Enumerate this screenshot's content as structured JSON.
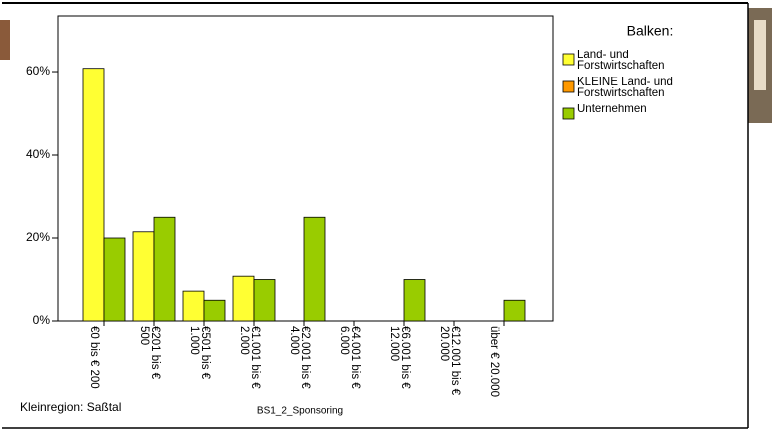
{
  "chart_data": {
    "type": "bar",
    "categories": [
      "€0 bis € 200",
      "€201 bis € 500",
      "€501 bis € 1.000",
      "€1.001 bis € 2.000",
      "€2.001 bis € 4.000",
      "€4.001 bis € 6.000",
      "€6.001 bis € 12.000",
      "€12.001 bis € 20.000",
      "über € 20.000"
    ],
    "series": [
      {
        "name": "Land- und Forstwirtschaften",
        "color": "#ffff33",
        "values": [
          60.8,
          21.5,
          7.2,
          10.8,
          0,
          0,
          0,
          0,
          0
        ]
      },
      {
        "name": "KLEINE Land- und Forstwirtschaften",
        "color": "#ff9900",
        "values": [
          0,
          0,
          0,
          0,
          0,
          0,
          0,
          0,
          0
        ]
      },
      {
        "name": "Unternehmen",
        "color": "#99cc00",
        "values": [
          20,
          25,
          5,
          10,
          25,
          0,
          10,
          0,
          5
        ]
      }
    ],
    "ylim": [
      0,
      73.5
    ],
    "yticks": [
      {
        "value": 0,
        "label": "0%"
      },
      {
        "value": 20,
        "label": "20%"
      },
      {
        "value": 40,
        "label": "40%"
      },
      {
        "value": 60,
        "label": "60%"
      }
    ],
    "legend_title": "Balken:",
    "footnote": "Kleinregion: Saßtal",
    "xlabel": "BS1_2_Sponsoring"
  }
}
